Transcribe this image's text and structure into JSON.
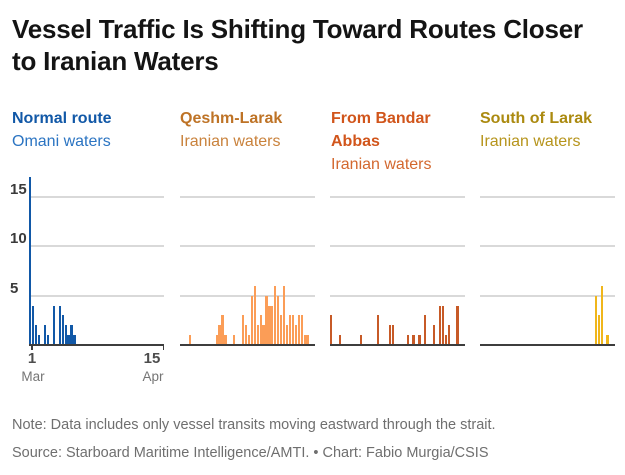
{
  "chart_data": {
    "type": "bar",
    "title": "Vessel Traffic Is Shifting Toward Routes Closer to Iranian Waters",
    "x_range": [
      "1 Mar",
      "15 Apr"
    ],
    "x_days": 46,
    "y_ticks": [
      5,
      10,
      15
    ],
    "y_max": 17,
    "grid": true,
    "legend_position": "panel-headers",
    "panels": [
      {
        "route_label": "Normal route",
        "waters_label": "Omani waters",
        "label_color": "#1158A7",
        "waters_color": "#2B74C2",
        "bar_color": "#1158A7",
        "values": [
          17,
          4,
          2,
          1,
          0,
          2,
          1,
          0,
          4,
          0,
          4,
          3,
          2,
          1,
          2,
          1,
          0,
          0,
          0,
          0,
          0,
          0,
          0,
          0,
          0,
          0,
          0,
          0,
          0,
          0,
          0,
          0,
          0,
          0,
          0,
          0,
          0,
          0,
          0,
          0,
          0,
          0,
          0,
          0,
          0,
          0
        ]
      },
      {
        "route_label": "Qeshm-Larak",
        "waters_label": "Iranian waters",
        "label_color": "#BE7326",
        "waters_color": "#C9823C",
        "bar_color": "#FB9D57",
        "values": [
          0,
          0,
          0,
          1,
          0,
          0,
          0,
          0,
          0,
          0,
          0,
          0,
          1,
          2,
          3,
          1,
          0,
          0,
          1,
          0,
          0,
          3,
          2,
          1,
          5,
          6,
          2,
          3,
          2,
          5,
          4,
          4,
          6,
          5,
          3,
          6,
          2,
          3,
          3,
          2,
          3,
          3,
          1,
          1,
          0,
          0
        ]
      },
      {
        "route_label": "From Bandar Abbas",
        "waters_label": "Iranian waters",
        "label_color": "#D1551B",
        "waters_color": "#D3682F",
        "bar_color": "#C75A27",
        "values": [
          3,
          0,
          0,
          1,
          0,
          0,
          0,
          0,
          0,
          0,
          1,
          0,
          0,
          0,
          0,
          0,
          3,
          0,
          0,
          0,
          2,
          2,
          0,
          0,
          0,
          0,
          1,
          0,
          1,
          0,
          1,
          0,
          3,
          0,
          0,
          2,
          0,
          4,
          4,
          1,
          2,
          0,
          0,
          4,
          0,
          0
        ]
      },
      {
        "route_label": "South of Larak",
        "waters_label": "Iranian waters",
        "label_color": "#AB8A10",
        "waters_color": "#B6941C",
        "bar_color": "#F0B61B",
        "values": [
          0,
          0,
          0,
          0,
          0,
          0,
          0,
          0,
          0,
          0,
          0,
          0,
          0,
          0,
          0,
          0,
          0,
          0,
          0,
          0,
          0,
          0,
          0,
          0,
          0,
          0,
          0,
          0,
          0,
          0,
          0,
          0,
          0,
          0,
          0,
          0,
          0,
          0,
          0,
          5,
          3,
          6,
          0,
          1,
          0,
          0
        ]
      }
    ]
  },
  "x_axis": {
    "start_day": "1",
    "start_month": "Mar",
    "end_day": "15",
    "end_month": "Apr"
  },
  "note": "Note: Data includes only vessel transits moving eastward through the strait.",
  "source": "Source: Starboard Maritime Intelligence/AMTI. • Chart: Fabio Murgia/CSIS"
}
